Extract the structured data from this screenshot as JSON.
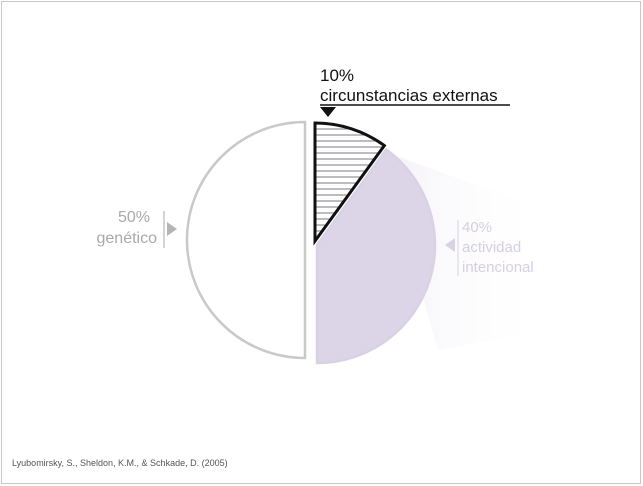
{
  "chart_data": {
    "type": "pie",
    "title": "",
    "slices": [
      {
        "value": 10,
        "pct_label": "10%",
        "label": "circunstancias externas",
        "fill": "hatched",
        "stroke": "#111111",
        "label_color": "#111111"
      },
      {
        "value": 40,
        "pct_label": "40%",
        "label_lines": [
          "actividad",
          "intencional"
        ],
        "fill": "#dcd5e8",
        "stroke": "#d8d2e4",
        "label_color": "#d6cfe0"
      },
      {
        "value": 50,
        "pct_label": "50%",
        "label": "genético",
        "fill": "#ffffff",
        "stroke": "#c9c9c9",
        "label_color": "#a9a9a9"
      }
    ]
  },
  "citation": "Lyubomirsky, S., Sheldon, K.M., & Schkade, D. (2005)"
}
